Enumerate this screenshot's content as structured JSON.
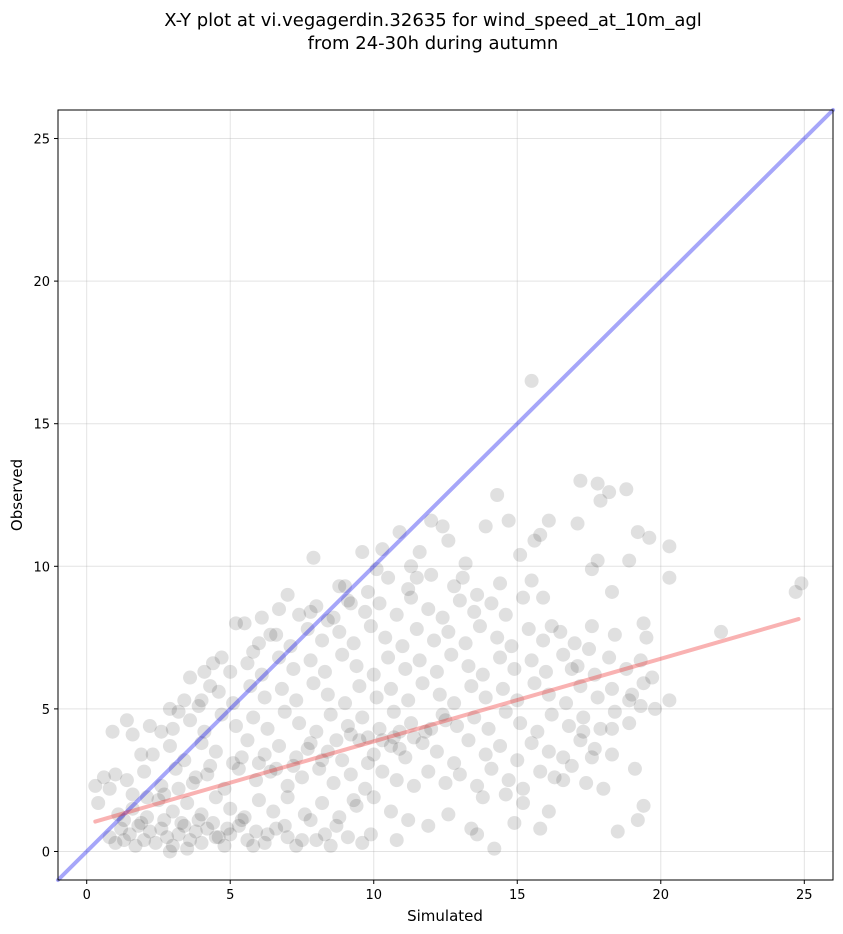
{
  "chart_data": {
    "type": "scatter",
    "title": "X-Y plot at vi.vegagerdin.32635 for wind_speed_at_10m_agl",
    "subtitle": "from 24-30h during autumn",
    "xlabel": "Simulated",
    "ylabel": "Observed",
    "xlim": [
      -1,
      26
    ],
    "ylim": [
      -1,
      26
    ],
    "xticks": [
      0,
      5,
      10,
      15,
      20,
      25
    ],
    "yticks": [
      0,
      5,
      10,
      15,
      20,
      25
    ],
    "grid": true,
    "point_color": "#000000",
    "point_opacity": 0.12,
    "reference_line": {
      "color": "#0000ee",
      "opacity": 0.35,
      "points": [
        [
          -1,
          -1
        ],
        [
          26,
          26
        ]
      ]
    },
    "fit_line": {
      "color": "#ee2222",
      "opacity": 0.35,
      "points": [
        [
          0.3,
          1.05
        ],
        [
          24.8,
          8.15
        ]
      ]
    },
    "points": [
      [
        0.3,
        2.3
      ],
      [
        0.4,
        1.7
      ],
      [
        0.6,
        2.6
      ],
      [
        0.8,
        2.2
      ],
      [
        1.0,
        2.7
      ],
      [
        0.9,
        4.2
      ],
      [
        1.4,
        4.6
      ],
      [
        1.6,
        4.1
      ],
      [
        1.9,
        3.4
      ],
      [
        2.2,
        4.4
      ],
      [
        2.6,
        4.2
      ],
      [
        2.9,
        5.0
      ],
      [
        3.2,
        4.9
      ],
      [
        3.4,
        5.3
      ],
      [
        3.6,
        6.1
      ],
      [
        3.9,
        5.1
      ],
      [
        4.1,
        6.3
      ],
      [
        4.3,
        5.8
      ],
      [
        4.4,
        6.6
      ],
      [
        4.7,
        6.8
      ],
      [
        5.2,
        8.0
      ],
      [
        5.5,
        8.0
      ],
      [
        5.8,
        7.0
      ],
      [
        6.1,
        8.2
      ],
      [
        6.4,
        7.6
      ],
      [
        6.7,
        8.5
      ],
      [
        7.0,
        9.0
      ],
      [
        7.4,
        8.3
      ],
      [
        7.8,
        8.4
      ],
      [
        7.9,
        10.3
      ],
      [
        8.4,
        8.1
      ],
      [
        8.8,
        9.3
      ],
      [
        9.2,
        8.7
      ],
      [
        9.6,
        10.5
      ],
      [
        10.1,
        9.9
      ],
      [
        10.3,
        10.6
      ],
      [
        10.9,
        11.2
      ],
      [
        11.3,
        10.0
      ],
      [
        11.5,
        9.6
      ],
      [
        11.6,
        10.5
      ],
      [
        12.0,
        11.6
      ],
      [
        12.4,
        11.4
      ],
      [
        12.6,
        10.9
      ],
      [
        13.1,
        9.6
      ],
      [
        13.2,
        10.1
      ],
      [
        13.9,
        11.4
      ],
      [
        14.3,
        12.5
      ],
      [
        14.7,
        11.6
      ],
      [
        15.1,
        10.4
      ],
      [
        15.5,
        9.5
      ],
      [
        15.6,
        10.9
      ],
      [
        15.8,
        11.1
      ],
      [
        16.1,
        11.6
      ],
      [
        15.5,
        16.5
      ],
      [
        17.2,
        13.0
      ],
      [
        17.8,
        12.9
      ],
      [
        17.9,
        12.3
      ],
      [
        18.2,
        12.6
      ],
      [
        18.8,
        12.7
      ],
      [
        17.1,
        11.5
      ],
      [
        17.8,
        10.2
      ],
      [
        17.6,
        9.9
      ],
      [
        18.3,
        9.1
      ],
      [
        19.2,
        11.2
      ],
      [
        19.6,
        11.0
      ],
      [
        20.3,
        10.7
      ],
      [
        20.3,
        9.6
      ],
      [
        18.9,
        10.2
      ],
      [
        19.4,
        8.0
      ],
      [
        19.5,
        7.5
      ],
      [
        22.1,
        7.7
      ],
      [
        24.7,
        9.1
      ],
      [
        24.9,
        9.4
      ],
      [
        20.3,
        5.3
      ],
      [
        19.3,
        5.1
      ],
      [
        19.0,
        5.5
      ],
      [
        18.3,
        4.3
      ],
      [
        17.6,
        3.3
      ],
      [
        18.0,
        2.2
      ],
      [
        18.5,
        0.7
      ],
      [
        19.1,
        2.9
      ],
      [
        19.4,
        1.6
      ],
      [
        19.2,
        1.1
      ],
      [
        16.6,
        2.5
      ],
      [
        17.3,
        4.2
      ],
      [
        16.9,
        6.4
      ],
      [
        17.5,
        7.1
      ],
      [
        18.4,
        7.6
      ],
      [
        16.2,
        7.9
      ],
      [
        15.9,
        8.9
      ],
      [
        0.8,
        0.5
      ],
      [
        1.0,
        0.3
      ],
      [
        1.2,
        0.8
      ],
      [
        1.3,
        0.4
      ],
      [
        1.5,
        0.6
      ],
      [
        1.7,
        0.2
      ],
      [
        1.8,
        0.9
      ],
      [
        2.0,
        0.4
      ],
      [
        2.2,
        0.7
      ],
      [
        2.4,
        0.3
      ],
      [
        2.6,
        0.8
      ],
      [
        2.8,
        0.5
      ],
      [
        3.0,
        0.2
      ],
      [
        3.2,
        0.6
      ],
      [
        3.4,
        0.9
      ],
      [
        3.6,
        0.4
      ],
      [
        3.8,
        0.7
      ],
      [
        4.0,
        0.3
      ],
      [
        4.2,
        0.8
      ],
      [
        4.4,
        1.0
      ],
      [
        4.6,
        0.5
      ],
      [
        4.8,
        0.2
      ],
      [
        5.0,
        0.6
      ],
      [
        5.3,
        0.9
      ],
      [
        5.6,
        0.4
      ],
      [
        5.9,
        0.7
      ],
      [
        6.2,
        0.3
      ],
      [
        6.6,
        0.8
      ],
      [
        7.0,
        0.5
      ],
      [
        7.5,
        0.4
      ],
      [
        1.1,
        1.3
      ],
      [
        1.6,
        1.5
      ],
      [
        2.1,
        1.2
      ],
      [
        2.5,
        1.8
      ],
      [
        3.0,
        1.4
      ],
      [
        3.5,
        1.7
      ],
      [
        4.0,
        1.3
      ],
      [
        4.5,
        1.9
      ],
      [
        5.0,
        1.5
      ],
      [
        5.5,
        1.2
      ],
      [
        6.0,
        1.8
      ],
      [
        6.5,
        1.4
      ],
      [
        7.0,
        1.9
      ],
      [
        7.6,
        1.3
      ],
      [
        8.2,
        1.7
      ],
      [
        8.8,
        1.2
      ],
      [
        9.4,
        1.6
      ],
      [
        10.0,
        1.9
      ],
      [
        10.6,
        1.4
      ],
      [
        11.2,
        1.1
      ],
      [
        1.4,
        2.5
      ],
      [
        2.0,
        2.8
      ],
      [
        2.6,
        2.3
      ],
      [
        3.1,
        2.9
      ],
      [
        3.7,
        2.4
      ],
      [
        4.2,
        2.7
      ],
      [
        4.8,
        2.2
      ],
      [
        5.3,
        2.9
      ],
      [
        5.9,
        2.5
      ],
      [
        6.4,
        2.8
      ],
      [
        7.0,
        2.3
      ],
      [
        7.5,
        2.6
      ],
      [
        8.1,
        2.9
      ],
      [
        8.6,
        2.4
      ],
      [
        9.2,
        2.7
      ],
      [
        9.7,
        2.2
      ],
      [
        10.3,
        2.8
      ],
      [
        10.8,
        2.5
      ],
      [
        11.4,
        2.3
      ],
      [
        11.9,
        2.8
      ],
      [
        12.5,
        2.4
      ],
      [
        13.0,
        2.7
      ],
      [
        13.6,
        2.3
      ],
      [
        14.1,
        2.9
      ],
      [
        14.7,
        2.5
      ],
      [
        15.2,
        2.2
      ],
      [
        15.8,
        2.8
      ],
      [
        16.3,
        2.6
      ],
      [
        16.9,
        3.0
      ],
      [
        17.4,
        2.4
      ],
      [
        2.3,
        3.4
      ],
      [
        2.9,
        3.7
      ],
      [
        3.4,
        3.2
      ],
      [
        4.0,
        3.8
      ],
      [
        4.5,
        3.5
      ],
      [
        5.1,
        3.1
      ],
      [
        5.6,
        3.9
      ],
      [
        6.2,
        3.4
      ],
      [
        6.7,
        3.7
      ],
      [
        7.3,
        3.3
      ],
      [
        7.8,
        3.8
      ],
      [
        8.4,
        3.5
      ],
      [
        8.9,
        3.2
      ],
      [
        9.5,
        3.9
      ],
      [
        10.0,
        3.4
      ],
      [
        10.6,
        3.7
      ],
      [
        11.1,
        3.3
      ],
      [
        11.7,
        3.8
      ],
      [
        12.2,
        3.5
      ],
      [
        12.8,
        3.1
      ],
      [
        13.3,
        3.9
      ],
      [
        13.9,
        3.4
      ],
      [
        14.4,
        3.7
      ],
      [
        15.0,
        3.2
      ],
      [
        15.5,
        3.8
      ],
      [
        16.1,
        3.5
      ],
      [
        16.6,
        3.3
      ],
      [
        17.2,
        3.9
      ],
      [
        17.7,
        3.6
      ],
      [
        18.3,
        3.4
      ],
      [
        3.0,
        4.3
      ],
      [
        3.6,
        4.6
      ],
      [
        4.1,
        4.2
      ],
      [
        4.7,
        4.8
      ],
      [
        5.2,
        4.4
      ],
      [
        5.8,
        4.7
      ],
      [
        6.3,
        4.3
      ],
      [
        6.9,
        4.9
      ],
      [
        7.4,
        4.5
      ],
      [
        8.0,
        4.2
      ],
      [
        8.5,
        4.8
      ],
      [
        9.1,
        4.4
      ],
      [
        9.6,
        4.7
      ],
      [
        10.2,
        4.3
      ],
      [
        10.7,
        4.9
      ],
      [
        11.3,
        4.5
      ],
      [
        11.8,
        4.2
      ],
      [
        12.4,
        4.8
      ],
      [
        12.9,
        4.4
      ],
      [
        13.5,
        4.7
      ],
      [
        14.0,
        4.3
      ],
      [
        14.6,
        4.9
      ],
      [
        15.1,
        4.5
      ],
      [
        15.7,
        4.2
      ],
      [
        16.2,
        4.8
      ],
      [
        16.8,
        4.4
      ],
      [
        17.3,
        4.7
      ],
      [
        17.9,
        4.3
      ],
      [
        18.4,
        4.9
      ],
      [
        18.9,
        4.5
      ],
      [
        4.0,
        5.3
      ],
      [
        4.6,
        5.6
      ],
      [
        5.1,
        5.2
      ],
      [
        5.7,
        5.8
      ],
      [
        6.2,
        5.4
      ],
      [
        6.8,
        5.7
      ],
      [
        7.3,
        5.3
      ],
      [
        7.9,
        5.9
      ],
      [
        8.4,
        5.5
      ],
      [
        9.0,
        5.2
      ],
      [
        9.5,
        5.8
      ],
      [
        10.1,
        5.4
      ],
      [
        10.6,
        5.7
      ],
      [
        11.2,
        5.3
      ],
      [
        11.7,
        5.9
      ],
      [
        12.3,
        5.5
      ],
      [
        12.8,
        5.2
      ],
      [
        13.4,
        5.8
      ],
      [
        13.9,
        5.4
      ],
      [
        14.5,
        5.7
      ],
      [
        15.0,
        5.3
      ],
      [
        15.6,
        5.9
      ],
      [
        16.1,
        5.5
      ],
      [
        16.7,
        5.2
      ],
      [
        17.2,
        5.8
      ],
      [
        17.8,
        5.4
      ],
      [
        18.3,
        5.7
      ],
      [
        18.9,
        5.3
      ],
      [
        19.4,
        5.9
      ],
      [
        19.8,
        5.0
      ],
      [
        5.0,
        6.3
      ],
      [
        5.6,
        6.6
      ],
      [
        6.1,
        6.2
      ],
      [
        6.7,
        6.8
      ],
      [
        7.2,
        6.4
      ],
      [
        7.8,
        6.7
      ],
      [
        8.3,
        6.3
      ],
      [
        8.9,
        6.9
      ],
      [
        9.4,
        6.5
      ],
      [
        10.0,
        6.2
      ],
      [
        10.5,
        6.8
      ],
      [
        11.1,
        6.4
      ],
      [
        11.6,
        6.7
      ],
      [
        12.2,
        6.3
      ],
      [
        12.7,
        6.9
      ],
      [
        13.3,
        6.5
      ],
      [
        13.8,
        6.2
      ],
      [
        14.4,
        6.8
      ],
      [
        14.9,
        6.4
      ],
      [
        15.5,
        6.7
      ],
      [
        16.0,
        6.3
      ],
      [
        16.6,
        6.9
      ],
      [
        17.1,
        6.5
      ],
      [
        17.7,
        6.2
      ],
      [
        18.2,
        6.8
      ],
      [
        18.8,
        6.4
      ],
      [
        19.3,
        6.7
      ],
      [
        19.7,
        6.1
      ],
      [
        6.0,
        7.3
      ],
      [
        6.6,
        7.6
      ],
      [
        7.1,
        7.2
      ],
      [
        7.7,
        7.8
      ],
      [
        8.2,
        7.4
      ],
      [
        8.8,
        7.7
      ],
      [
        9.3,
        7.3
      ],
      [
        9.9,
        7.9
      ],
      [
        10.4,
        7.5
      ],
      [
        11.0,
        7.2
      ],
      [
        11.5,
        7.8
      ],
      [
        12.1,
        7.4
      ],
      [
        12.6,
        7.7
      ],
      [
        13.2,
        7.3
      ],
      [
        13.7,
        7.9
      ],
      [
        14.3,
        7.5
      ],
      [
        14.8,
        7.2
      ],
      [
        15.4,
        7.8
      ],
      [
        15.9,
        7.4
      ],
      [
        16.5,
        7.7
      ],
      [
        17.0,
        7.3
      ],
      [
        17.6,
        7.9
      ],
      [
        8.0,
        8.6
      ],
      [
        8.6,
        8.2
      ],
      [
        9.1,
        8.8
      ],
      [
        9.7,
        8.4
      ],
      [
        10.2,
        8.7
      ],
      [
        10.8,
        8.3
      ],
      [
        11.3,
        8.9
      ],
      [
        11.9,
        8.5
      ],
      [
        12.4,
        8.2
      ],
      [
        13.0,
        8.8
      ],
      [
        13.5,
        8.4
      ],
      [
        14.1,
        8.7
      ],
      [
        14.6,
        8.3
      ],
      [
        15.2,
        8.9
      ],
      [
        9.0,
        9.3
      ],
      [
        9.8,
        9.1
      ],
      [
        10.5,
        9.6
      ],
      [
        11.2,
        9.2
      ],
      [
        12.0,
        9.7
      ],
      [
        12.8,
        9.3
      ],
      [
        13.6,
        9.0
      ],
      [
        14.4,
        9.4
      ],
      [
        10.7,
        4.0
      ],
      [
        10.9,
        3.6
      ],
      [
        9.8,
        3.1
      ],
      [
        9.3,
        1.8
      ],
      [
        8.7,
        0.9
      ],
      [
        9.9,
        0.6
      ],
      [
        10.8,
        0.4
      ],
      [
        11.9,
        0.9
      ],
      [
        12.6,
        1.3
      ],
      [
        13.4,
        0.8
      ],
      [
        14.2,
        0.1
      ],
      [
        13.6,
        0.6
      ],
      [
        14.9,
        1.0
      ],
      [
        15.8,
        0.8
      ],
      [
        16.1,
        1.4
      ],
      [
        15.2,
        1.7
      ],
      [
        14.6,
        2.0
      ],
      [
        13.8,
        1.9
      ],
      [
        6.9,
        0.9
      ],
      [
        7.8,
        1.1
      ],
      [
        8.3,
        0.6
      ],
      [
        5.4,
        1.1
      ],
      [
        4.9,
        0.8
      ],
      [
        3.9,
        1.1
      ],
      [
        3.3,
        1.0
      ],
      [
        2.7,
        1.1
      ],
      [
        1.9,
        1.0
      ],
      [
        1.3,
        1.1
      ],
      [
        4.3,
        3.0
      ],
      [
        3.8,
        2.6
      ],
      [
        3.2,
        2.2
      ],
      [
        2.7,
        2.0
      ],
      [
        2.1,
        1.9
      ],
      [
        1.6,
        2.0
      ],
      [
        5.4,
        3.3
      ],
      [
        6.0,
        3.1
      ],
      [
        6.6,
        2.9
      ],
      [
        7.2,
        3.0
      ],
      [
        7.7,
        3.6
      ],
      [
        8.2,
        3.2
      ],
      [
        8.7,
        3.9
      ],
      [
        9.2,
        4.1
      ],
      [
        9.8,
        4.0
      ],
      [
        10.3,
        3.9
      ],
      [
        10.9,
        4.2
      ],
      [
        11.4,
        4.0
      ],
      [
        12.0,
        4.3
      ],
      [
        12.5,
        4.6
      ],
      [
        4.5,
        0.5
      ],
      [
        5.8,
        0.2
      ],
      [
        6.3,
        0.6
      ],
      [
        7.3,
        0.2
      ],
      [
        8.0,
        0.4
      ],
      [
        8.5,
        0.2
      ],
      [
        9.1,
        0.5
      ],
      [
        9.6,
        0.3
      ],
      [
        3.5,
        0.1
      ],
      [
        2.9,
        0.0
      ]
    ]
  }
}
